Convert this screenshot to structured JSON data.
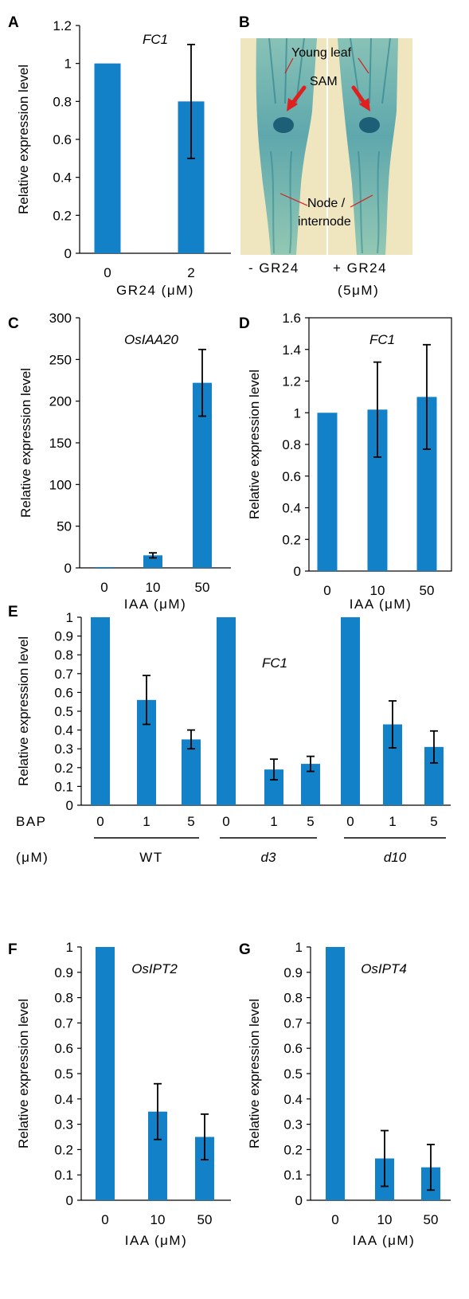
{
  "panel_letters": {
    "A": "A",
    "B": "B",
    "C": "C",
    "D": "D",
    "E": "E",
    "F": "F",
    "G": "G"
  },
  "colors": {
    "bar": "#1381c8",
    "arrow": "#e0201e",
    "leader": "#d42020",
    "photo_bg": "#efe6bf",
    "stain": "#2f9aa6"
  },
  "photo_b": {
    "labels": {
      "young_leaf": "Young leaf",
      "sam": "SAM",
      "node": "Node /",
      "internode": "internode"
    },
    "captions": {
      "left": "- GR24",
      "right": "+ GR24",
      "right_conc": "(5μM)"
    }
  },
  "chart_data": [
    {
      "id": "A",
      "type": "bar",
      "title": "FC1",
      "categories": [
        "0",
        "2"
      ],
      "values": [
        1.0,
        0.8
      ],
      "errors": [
        0,
        0.3
      ],
      "ylim": [
        0,
        1.2
      ],
      "yticks": [
        "0",
        "0.2",
        "0.4",
        "0.6",
        "0.8",
        "1",
        "1.2"
      ],
      "ylabel": "Relative expression  level",
      "xlabel": "GR24 (μM)"
    },
    {
      "id": "C",
      "type": "bar",
      "title": "OsIAA20",
      "categories": [
        "0",
        "10",
        "50"
      ],
      "values": [
        1,
        15,
        222
      ],
      "errors": [
        0,
        3,
        40
      ],
      "ylim": [
        0,
        300
      ],
      "yticks": [
        "0",
        "50",
        "100",
        "150",
        "200",
        "250",
        "300"
      ],
      "ylabel": "Relative expression level",
      "xlabel": "IAA (μM)"
    },
    {
      "id": "D",
      "type": "bar",
      "title": "FC1",
      "categories": [
        "0",
        "10",
        "50"
      ],
      "values": [
        1.0,
        1.02,
        1.1
      ],
      "errors": [
        0,
        0.3,
        0.33
      ],
      "ylim": [
        0,
        1.6
      ],
      "yticks": [
        "0",
        "0.2",
        "0.4",
        "0.6",
        "0.8",
        "1",
        "1.2",
        "1.4",
        "1.6"
      ],
      "ylabel": "Relative expression level",
      "xlabel": "IAA (μM)"
    },
    {
      "id": "E",
      "type": "bar",
      "title": "FC1",
      "categories": [
        "0",
        "1",
        "5",
        "0",
        "1",
        "5",
        "0",
        "1",
        "5"
      ],
      "groups": [
        "WT",
        "d3",
        "d10"
      ],
      "group_prefix": "BAP",
      "unit_label": "(μM)",
      "values": [
        1.0,
        0.56,
        0.35,
        1.0,
        0.19,
        0.22,
        1.0,
        0.43,
        0.31
      ],
      "errors": [
        0,
        0.13,
        0.05,
        0,
        0.055,
        0.04,
        0,
        0.125,
        0.085
      ],
      "ylim": [
        0,
        1
      ],
      "yticks": [
        "0",
        "0.1",
        "0.2",
        "0.3",
        "0.4",
        "0.5",
        "0.6",
        "0.7",
        "0.8",
        "0.9",
        "1"
      ],
      "ylabel": "Relative expression  level"
    },
    {
      "id": "F",
      "type": "bar",
      "title": "OsIPT2",
      "categories": [
        "0",
        "10",
        "50"
      ],
      "values": [
        1.0,
        0.35,
        0.25
      ],
      "errors": [
        0,
        0.11,
        0.09
      ],
      "ylim": [
        0,
        1
      ],
      "yticks": [
        "0",
        "0.1",
        "0.2",
        "0.3",
        "0.4",
        "0.5",
        "0.6",
        "0.7",
        "0.8",
        "0.9",
        "1"
      ],
      "ylabel": "Relative expression  level",
      "xlabel": "IAA (μM)"
    },
    {
      "id": "G",
      "type": "bar",
      "title": "OsIPT4",
      "categories": [
        "0",
        "10",
        "50"
      ],
      "values": [
        1.0,
        0.165,
        0.13
      ],
      "errors": [
        0,
        0.11,
        0.09
      ],
      "ylim": [
        0,
        1
      ],
      "yticks": [
        "0",
        "0.1",
        "0.2",
        "0.3",
        "0.4",
        "0.5",
        "0.6",
        "0.7",
        "0.8",
        "0.9",
        "1"
      ],
      "ylabel": "Relative expression  level",
      "xlabel": "IAA (μM)"
    }
  ]
}
